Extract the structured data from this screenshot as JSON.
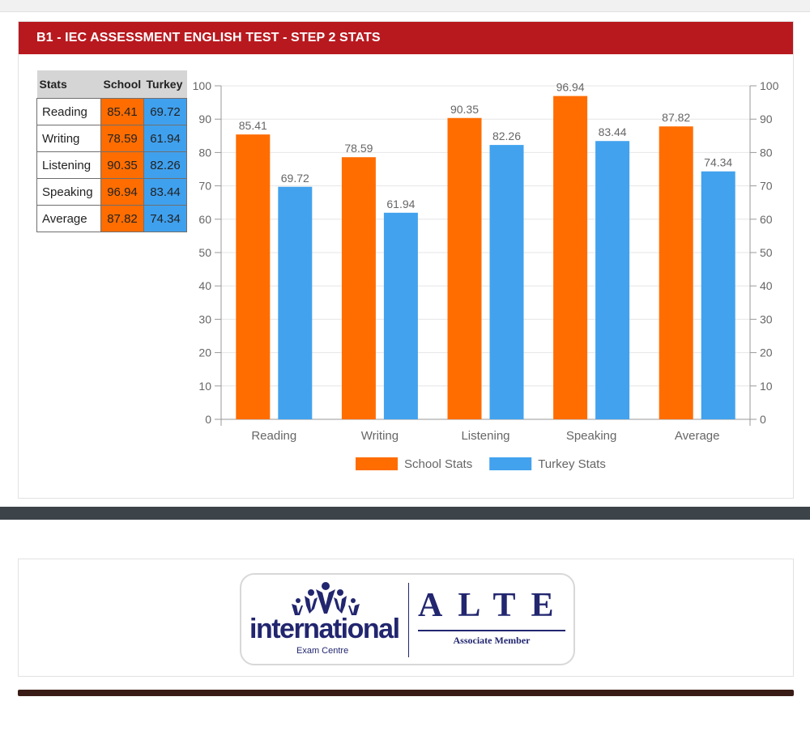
{
  "header": {
    "title": "B1 - IEC ASSESSMENT ENGLISH TEST - STEP 2 STATS"
  },
  "table": {
    "headers": [
      "Stats",
      "School",
      "Turkey"
    ],
    "rows": [
      {
        "label": "Reading",
        "school": "85.41",
        "turkey": "69.72"
      },
      {
        "label": "Writing",
        "school": "78.59",
        "turkey": "61.94"
      },
      {
        "label": "Listening",
        "school": "90.35",
        "turkey": "82.26"
      },
      {
        "label": "Speaking",
        "school": "96.94",
        "turkey": "83.44"
      },
      {
        "label": "Average",
        "school": "87.82",
        "turkey": "74.34"
      }
    ]
  },
  "chart_data": {
    "type": "bar",
    "title": "",
    "xlabel": "",
    "ylabel": "",
    "categories": [
      "Reading",
      "Writing",
      "Listening",
      "Speaking",
      "Average"
    ],
    "series": [
      {
        "name": "School Stats",
        "values": [
          85.41,
          78.59,
          90.35,
          96.94,
          87.82
        ],
        "color": "#ff6d00"
      },
      {
        "name": "Turkey Stats",
        "values": [
          69.72,
          61.94,
          82.26,
          83.44,
          74.34
        ],
        "color": "#42a2ee"
      }
    ],
    "ylim": [
      0,
      100
    ],
    "yticks": [
      0,
      10,
      20,
      30,
      40,
      50,
      60,
      70,
      80,
      90,
      100
    ],
    "grid": true,
    "dual_axis_labels": true,
    "legend_position": "bottom"
  },
  "logo": {
    "left_name": "international",
    "left_sub": "Exam Centre",
    "right_name": "ALTE",
    "right_sub": "Associate Member",
    "color": "#22266f"
  },
  "colors": {
    "header": "#b8191f",
    "school": "#ff6d00",
    "turkey": "#42a2ee"
  }
}
